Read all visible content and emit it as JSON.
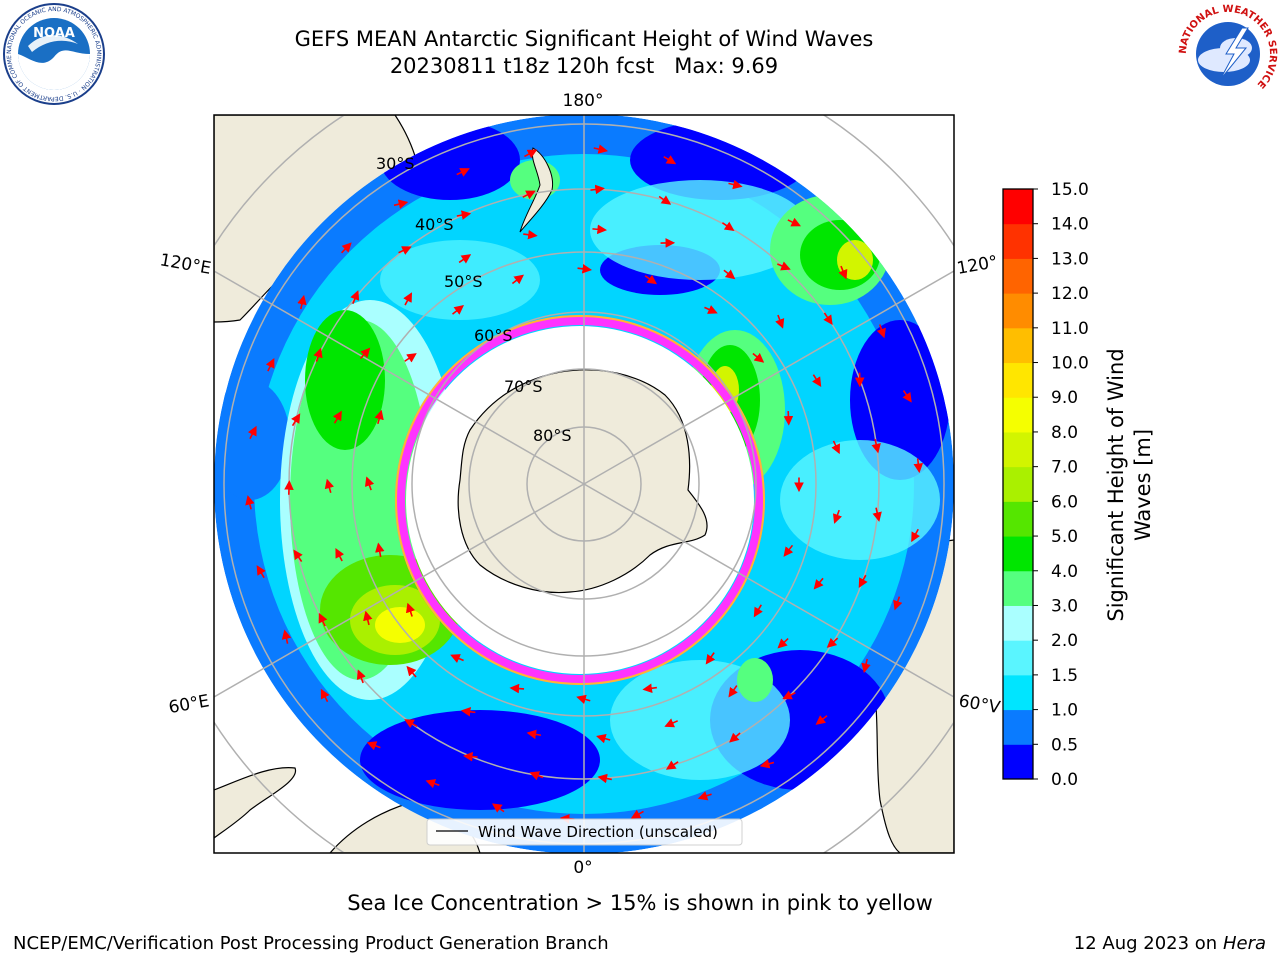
{
  "header": {
    "title_line1": "GEFS MEAN Antarctic Significant Height of Wind Waves",
    "title_line2": "20230811 t18z 120h fcst   Max: 9.69"
  },
  "logos": {
    "left": {
      "name": "noaa-logo",
      "text": "NOAA",
      "ring_text": "NATIONAL OCEANIC AND ATMOSPHERIC ADMINISTRATION · U.S. DEPARTMENT OF COMMERCE"
    },
    "right": {
      "name": "nws-logo",
      "ring_text": "NATIONAL WEATHER SERVICE"
    }
  },
  "map": {
    "projection": "south polar stereographic",
    "lon_labels": {
      "top": "180°",
      "upper_left": "120°E",
      "upper_right": "120°",
      "lower_left": "60°E",
      "lower_right": "60°V",
      "bottom": "0°"
    },
    "lat_labels": [
      "30°S",
      "40°S",
      "50°S",
      "60°S",
      "70°S",
      "80°S"
    ],
    "legend": "Wind Wave Direction (unscaled)",
    "colors": {
      "land": "#efebdb",
      "sea_ice_low": "#ff33ff",
      "sea_ice_high": "#ffd700",
      "grid": "#b0b0b0",
      "arrow": "#ff0000"
    }
  },
  "colorbar": {
    "label_line1": "Significant Height of Wind",
    "label_line2": "Waves [m]",
    "ticks": [
      "0.0",
      "0.5",
      "1.0",
      "1.5",
      "2.0",
      "3.0",
      "4.0",
      "5.0",
      "6.0",
      "7.0",
      "8.0",
      "9.0",
      "10.0",
      "11.0",
      "12.0",
      "13.0",
      "14.0",
      "15.0"
    ],
    "colors": [
      "#0000ff",
      "#0a7bff",
      "#00e5ff",
      "#5af5ff",
      "#aaffff",
      "#55ff7f",
      "#00e600",
      "#55e600",
      "#aaf000",
      "#d2f500",
      "#f5ff00",
      "#ffe600",
      "#ffbe00",
      "#ff8c00",
      "#ff6400",
      "#ff3200",
      "#ff0000"
    ]
  },
  "footer": {
    "ice_note": "Sea Ice Concentration > 15% is shown in pink to yellow",
    "credit": "NCEP/EMC/Verification Post Processing Product Generation Branch",
    "date": "12 Aug 2023 on",
    "machine": "Hera"
  }
}
